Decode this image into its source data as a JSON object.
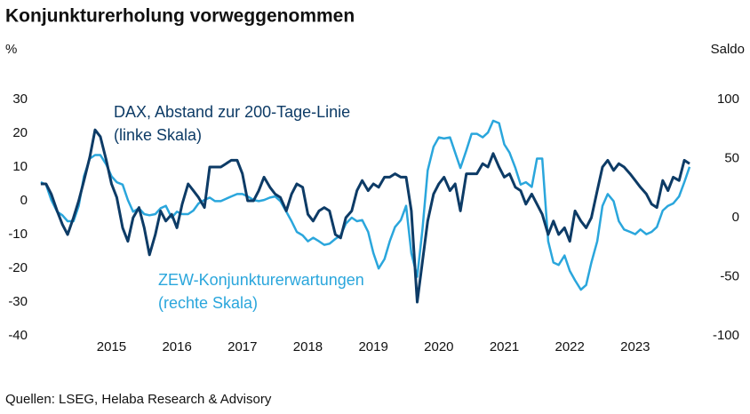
{
  "chart_data": {
    "type": "line",
    "title": "Konjunkturerholung vorweggenommen",
    "ylabel": "%",
    "y2label": "Saldo",
    "source": "Quellen: LSEG, Helaba Research & Advisory",
    "xlim": [
      2014.34,
      2024.52
    ],
    "xticks": [
      {
        "value": 2015.5,
        "label": "2015"
      },
      {
        "value": 2016.5,
        "label": "2016"
      },
      {
        "value": 2017.5,
        "label": "2017"
      },
      {
        "value": 2018.5,
        "label": "2018"
      },
      {
        "value": 2019.5,
        "label": "2019"
      },
      {
        "value": 2020.5,
        "label": "2020"
      },
      {
        "value": 2021.5,
        "label": "2021"
      },
      {
        "value": 2022.5,
        "label": "2022"
      },
      {
        "value": 2023.5,
        "label": "2023"
      }
    ],
    "ylim": [
      -40,
      30
    ],
    "yticks": [
      -40,
      -30,
      -20,
      -10,
      0,
      10,
      20,
      30
    ],
    "y2lim": [
      -100,
      100
    ],
    "y2ticks": [
      -100,
      -50,
      0,
      50,
      100
    ],
    "grid": false,
    "x": [
      2014.42,
      2014.5,
      2014.58,
      2014.67,
      2014.75,
      2014.83,
      2014.92,
      2015.0,
      2015.08,
      2015.17,
      2015.25,
      2015.33,
      2015.42,
      2015.5,
      2015.58,
      2015.67,
      2015.75,
      2015.83,
      2015.92,
      2016.0,
      2016.08,
      2016.17,
      2016.25,
      2016.33,
      2016.42,
      2016.5,
      2016.58,
      2016.67,
      2016.75,
      2016.83,
      2016.92,
      2017.0,
      2017.08,
      2017.17,
      2017.25,
      2017.33,
      2017.42,
      2017.5,
      2017.58,
      2017.67,
      2017.75,
      2017.83,
      2017.92,
      2018.0,
      2018.08,
      2018.17,
      2018.25,
      2018.33,
      2018.42,
      2018.5,
      2018.58,
      2018.67,
      2018.75,
      2018.83,
      2018.92,
      2019.0,
      2019.08,
      2019.17,
      2019.25,
      2019.33,
      2019.42,
      2019.5,
      2019.58,
      2019.67,
      2019.75,
      2019.83,
      2019.92,
      2020.0,
      2020.08,
      2020.17,
      2020.25,
      2020.33,
      2020.42,
      2020.5,
      2020.58,
      2020.67,
      2020.75,
      2020.83,
      2020.92,
      2021.0,
      2021.08,
      2021.17,
      2021.25,
      2021.33,
      2021.42,
      2021.5,
      2021.58,
      2021.67,
      2021.75,
      2021.83,
      2021.92,
      2022.0,
      2022.08,
      2022.17,
      2022.25,
      2022.33,
      2022.42,
      2022.5,
      2022.58,
      2022.67,
      2022.75,
      2022.83,
      2022.92,
      2023.0,
      2023.08,
      2023.17,
      2023.25,
      2023.33,
      2023.42,
      2023.5,
      2023.58,
      2023.67,
      2023.75,
      2023.83,
      2023.92,
      2024.0,
      2024.08,
      2024.17,
      2024.25,
      2024.33
    ],
    "series": [
      {
        "name": "DAX, Abstand zur 200-Tage-Linie",
        "scale_note": "(linke Skala)",
        "color": "#0d3b66",
        "axis": "y",
        "values": [
          5,
          5,
          2,
          -3,
          -7,
          -10,
          -5,
          0,
          6,
          13,
          21,
          19,
          12,
          5,
          1,
          -8,
          -12,
          -5,
          -2,
          -8,
          -16,
          -10,
          -3,
          -6,
          -4,
          -8,
          -1,
          5,
          3,
          1,
          -2,
          10,
          10,
          10,
          11,
          12,
          12,
          8,
          0,
          0,
          3,
          7,
          4,
          2,
          1,
          -3,
          2,
          5,
          4,
          -4,
          -6,
          -3,
          -2,
          -3,
          -10,
          -11,
          -5,
          -3,
          3,
          6,
          3,
          5,
          4,
          7,
          7,
          8,
          7,
          7,
          -3,
          -30,
          -18,
          -6,
          2,
          5,
          7,
          3,
          5,
          -3,
          8,
          8,
          8,
          11,
          10,
          14,
          10,
          7,
          8,
          4,
          3,
          -1,
          2,
          -1,
          -4,
          -10,
          -6,
          -10,
          -8,
          -12,
          -3,
          -6,
          -8,
          -5,
          3,
          10,
          12,
          9,
          11,
          10,
          8,
          6,
          4,
          2,
          -1,
          -2,
          6,
          3,
          7,
          6,
          12,
          11
        ]
      },
      {
        "name": "ZEW-Konjunkturerwartungen",
        "scale_note": "(rechte Skala)",
        "color": "#2aa6dc",
        "axis": "y2",
        "values": [
          30,
          28,
          15,
          5,
          2,
          -3,
          -3,
          10,
          35,
          50,
          53,
          53,
          45,
          35,
          30,
          28,
          15,
          5,
          8,
          3,
          2,
          3,
          8,
          10,
          0,
          5,
          3,
          3,
          6,
          12,
          15,
          17,
          14,
          14,
          16,
          18,
          20,
          20,
          18,
          15,
          14,
          15,
          17,
          18,
          14,
          5,
          -3,
          -12,
          -15,
          -20,
          -17,
          -20,
          -23,
          -22,
          -18,
          -15,
          -5,
          0,
          -3,
          -2,
          -12,
          -30,
          -43,
          -35,
          -20,
          -8,
          -2,
          10,
          -30,
          -50,
          -10,
          40,
          60,
          68,
          67,
          68,
          55,
          42,
          57,
          71,
          71,
          68,
          72,
          82,
          80,
          62,
          55,
          42,
          28,
          30,
          26,
          50,
          50,
          -20,
          -38,
          -40,
          -32,
          -45,
          -53,
          -61,
          -57,
          -38,
          -20,
          10,
          20,
          14,
          -3,
          -10,
          -12,
          -14,
          -10,
          -14,
          -12,
          -8,
          6,
          10,
          12,
          18,
          30,
          43
        ]
      }
    ]
  }
}
